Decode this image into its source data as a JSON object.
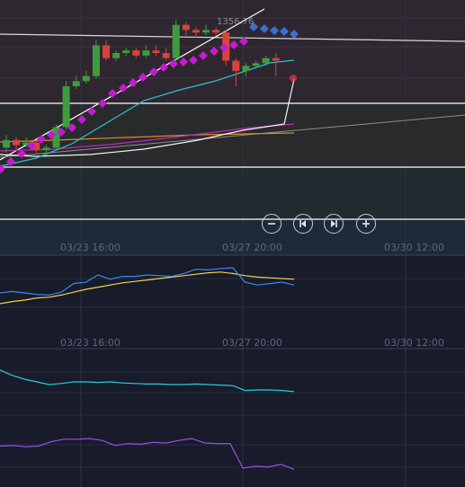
{
  "price_tag": "1356.76",
  "toolbar": {
    "zoom_out_icon": "minus-circle-icon",
    "step_back_icon": "skip-back-icon",
    "step_forward_icon": "skip-forward-icon",
    "zoom_in_icon": "plus-circle-icon"
  },
  "time_axis": {
    "labels": [
      "03/23 16:00",
      "03/27 20:00",
      "03/30 12:00"
    ]
  },
  "colors": {
    "bullish": "#3f9b3f",
    "bearish": "#d8433b",
    "psar_up": "#c21bd1",
    "psar_down": "#3a6fd1",
    "ema_fast": "#29c3d3",
    "ema_slow": "#f3f3f3",
    "ma_orange": "#e08a2a",
    "ma_magenta": "#c326c3",
    "osc_blue": "#3f86e8",
    "osc_yellow": "#f1d24a",
    "osc_cyan": "#31c9d8",
    "osc_purple": "#9a4fe8"
  },
  "chart_data": {
    "type": "candlestick",
    "candles": [
      {
        "o": 0.42,
        "c": 0.45,
        "h": 0.47,
        "l": 0.4
      },
      {
        "o": 0.45,
        "c": 0.43,
        "h": 0.46,
        "l": 0.41
      },
      {
        "o": 0.43,
        "c": 0.44,
        "h": 0.46,
        "l": 0.42
      },
      {
        "o": 0.44,
        "c": 0.41,
        "h": 0.45,
        "l": 0.4
      },
      {
        "o": 0.41,
        "c": 0.42,
        "h": 0.43,
        "l": 0.39
      },
      {
        "o": 0.42,
        "c": 0.5,
        "h": 0.51,
        "l": 0.41
      },
      {
        "o": 0.5,
        "c": 0.66,
        "h": 0.68,
        "l": 0.49
      },
      {
        "o": 0.66,
        "c": 0.68,
        "h": 0.7,
        "l": 0.65
      },
      {
        "o": 0.68,
        "c": 0.7,
        "h": 0.72,
        "l": 0.67
      },
      {
        "o": 0.7,
        "c": 0.82,
        "h": 0.84,
        "l": 0.69
      },
      {
        "o": 0.82,
        "c": 0.77,
        "h": 0.84,
        "l": 0.76
      },
      {
        "o": 0.77,
        "c": 0.79,
        "h": 0.8,
        "l": 0.76
      },
      {
        "o": 0.79,
        "c": 0.8,
        "h": 0.81,
        "l": 0.78
      },
      {
        "o": 0.8,
        "c": 0.78,
        "h": 0.81,
        "l": 0.77
      },
      {
        "o": 0.78,
        "c": 0.8,
        "h": 0.82,
        "l": 0.77
      },
      {
        "o": 0.8,
        "c": 0.79,
        "h": 0.82,
        "l": 0.78
      },
      {
        "o": 0.79,
        "c": 0.77,
        "h": 0.81,
        "l": 0.76
      },
      {
        "o": 0.77,
        "c": 0.9,
        "h": 0.92,
        "l": 0.76
      },
      {
        "o": 0.9,
        "c": 0.88,
        "h": 0.91,
        "l": 0.86
      },
      {
        "o": 0.88,
        "c": 0.87,
        "h": 0.89,
        "l": 0.85
      },
      {
        "o": 0.87,
        "c": 0.88,
        "h": 0.9,
        "l": 0.86
      },
      {
        "o": 0.88,
        "c": 0.87,
        "h": 0.89,
        "l": 0.86
      },
      {
        "o": 0.87,
        "c": 0.76,
        "h": 0.88,
        "l": 0.74
      },
      {
        "o": 0.76,
        "c": 0.72,
        "h": 0.77,
        "l": 0.66
      },
      {
        "o": 0.72,
        "c": 0.74,
        "h": 0.75,
        "l": 0.7
      },
      {
        "o": 0.74,
        "c": 0.75,
        "h": 0.76,
        "l": 0.73
      },
      {
        "o": 0.75,
        "c": 0.77,
        "h": 0.78,
        "l": 0.74
      },
      {
        "o": 0.77,
        "c": 0.76,
        "h": 0.79,
        "l": 0.7
      }
    ],
    "oscillator_1": {
      "blue": [
        0.55,
        0.57,
        0.55,
        0.53,
        0.52,
        0.56,
        0.68,
        0.7,
        0.8,
        0.74,
        0.78,
        0.78,
        0.8,
        0.79,
        0.78,
        0.82,
        0.88,
        0.87,
        0.89,
        0.9,
        0.7,
        0.66,
        0.68,
        0.7,
        0.66
      ],
      "yellow": [
        0.4,
        0.43,
        0.45,
        0.48,
        0.49,
        0.52,
        0.56,
        0.6,
        0.63,
        0.66,
        0.69,
        0.71,
        0.73,
        0.75,
        0.77,
        0.79,
        0.81,
        0.83,
        0.84,
        0.82,
        0.79,
        0.77,
        0.76,
        0.75,
        0.74
      ]
    },
    "oscillator_2": {
      "cyan": [
        0.72,
        0.62,
        0.55,
        0.5,
        0.45,
        0.47,
        0.5,
        0.5,
        0.49,
        0.5,
        0.48,
        0.47,
        0.46,
        0.46,
        0.45,
        0.45,
        0.46,
        0.45,
        0.44,
        0.43,
        0.34,
        0.35,
        0.35,
        0.34,
        0.32
      ]
    },
    "oscillator_3": {
      "purple": [
        0.55,
        0.56,
        0.54,
        0.55,
        0.62,
        0.66,
        0.66,
        0.67,
        0.64,
        0.56,
        0.59,
        0.58,
        0.61,
        0.6,
        0.64,
        0.67,
        0.6,
        0.59,
        0.59,
        0.2,
        0.23,
        0.22,
        0.26,
        0.18
      ]
    }
  }
}
